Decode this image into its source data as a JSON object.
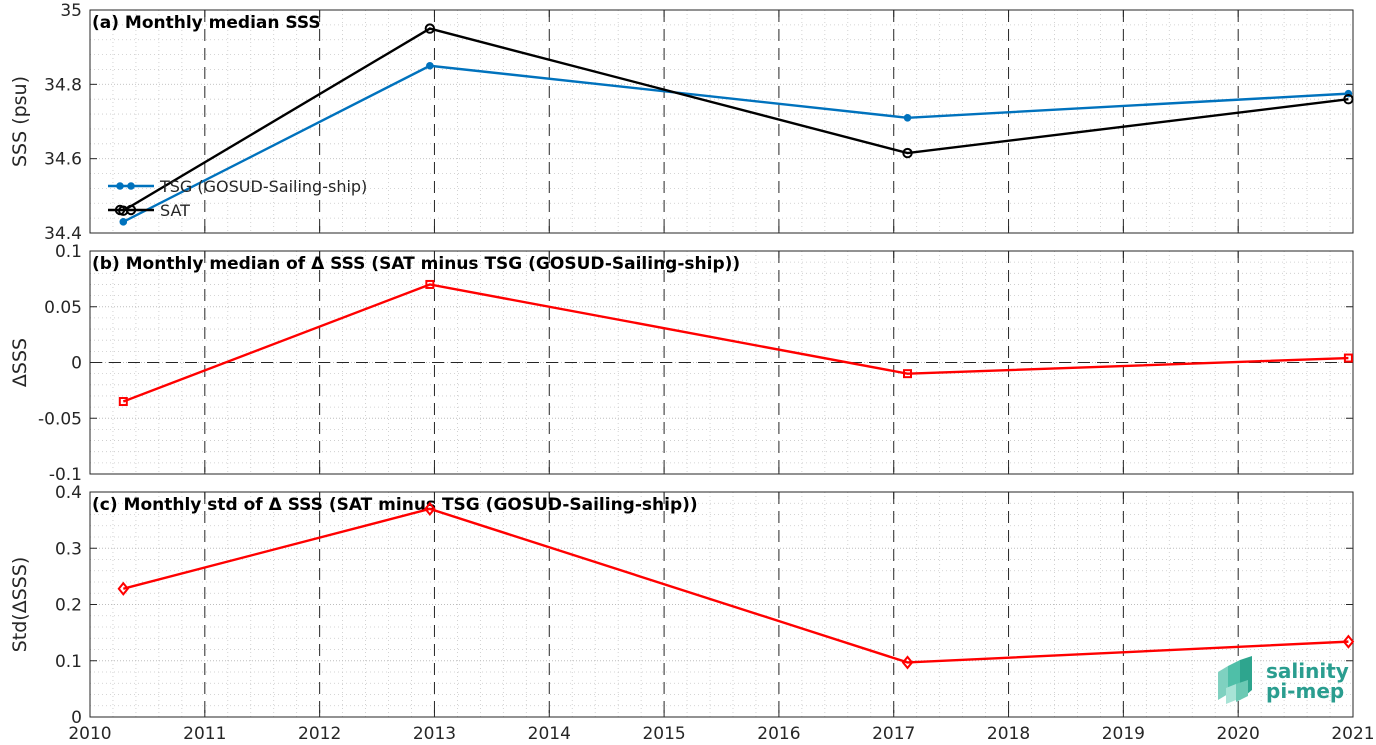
{
  "chart_data": [
    {
      "id": "a",
      "type": "line",
      "title": "(a) Monthly median SSS",
      "xlabel": "",
      "ylabel": "SSS (psu)",
      "xlim": [
        2010,
        2021
      ],
      "ylim": [
        34.4,
        35
      ],
      "yticks": [
        "34.4",
        "34.6",
        "34.8",
        "35"
      ],
      "legend_position": "bottom-left",
      "series": [
        {
          "name": "TSG (GOSUD-Sailing-ship)",
          "color": "#0072bd",
          "marker": "dot",
          "x": [
            2010.29,
            2012.96,
            2017.12,
            2020.96
          ],
          "y": [
            34.43,
            34.85,
            34.71,
            34.775
          ]
        },
        {
          "name": "SAT",
          "color": "#000000",
          "marker": "circle",
          "x": [
            2010.29,
            2012.96,
            2017.12,
            2020.96
          ],
          "y": [
            34.46,
            34.95,
            34.615,
            34.76
          ]
        }
      ]
    },
    {
      "id": "b",
      "type": "line",
      "title": "(b) Monthly median of Δ SSS (SAT minus TSG (GOSUD-Sailing-ship))",
      "xlabel": "",
      "ylabel": "ΔSSS",
      "xlim": [
        2010,
        2021
      ],
      "ylim": [
        -0.1,
        0.1
      ],
      "yticks": [
        "-0.1",
        "-0.05",
        "0",
        "0.05",
        "0.1"
      ],
      "zero_line": true,
      "series": [
        {
          "name": "",
          "color": "#ff0000",
          "marker": "square",
          "x": [
            2010.29,
            2012.96,
            2017.12,
            2020.96
          ],
          "y": [
            -0.035,
            0.07,
            -0.01,
            0.004
          ]
        }
      ]
    },
    {
      "id": "c",
      "type": "line",
      "title": "(c) Monthly std of Δ SSS (SAT minus TSG (GOSUD-Sailing-ship))",
      "xlabel": "",
      "ylabel": "Std(ΔSSS)",
      "xlim": [
        2010,
        2021
      ],
      "ylim": [
        0,
        0.4
      ],
      "yticks": [
        "0",
        "0.1",
        "0.2",
        "0.3",
        "0.4"
      ],
      "xticks": [
        "2010",
        "2011",
        "2012",
        "2013",
        "2014",
        "2015",
        "2016",
        "2017",
        "2018",
        "2019",
        "2020",
        "2021"
      ],
      "series": [
        {
          "name": "",
          "color": "#ff0000",
          "marker": "diamond",
          "x": [
            2010.29,
            2012.96,
            2017.12,
            2020.96
          ],
          "y": [
            0.228,
            0.37,
            0.097,
            0.134
          ]
        }
      ]
    }
  ],
  "logo": {
    "line1": "salinity",
    "line2": "pi-mep"
  }
}
